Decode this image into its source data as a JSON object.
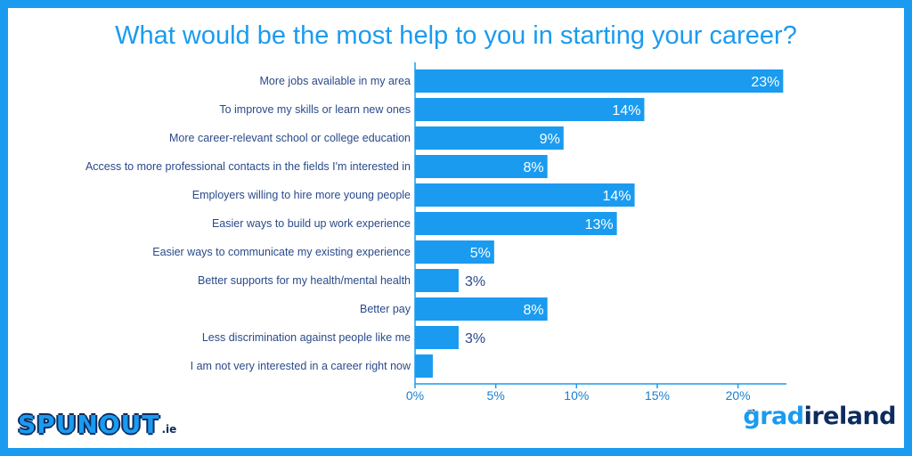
{
  "title": "What would be the most help to you in starting your career?",
  "chart_data": {
    "type": "bar",
    "orientation": "horizontal",
    "categories": [
      "More jobs available in my area",
      "To improve my skills or learn new ones",
      "More career-relevant school or college education",
      "Access to more professional contacts in the fields I'm interested in",
      "Employers willing to hire more young people",
      "Easier ways to build up work experience",
      "Easier ways to communicate my existing experience",
      "Better supports for my health/mental health",
      "Better pay",
      "Less discrimination against people like me",
      "I am not very interested in a career right now"
    ],
    "values": [
      22.8,
      14.2,
      9.2,
      8.2,
      13.6,
      12.5,
      4.9,
      2.7,
      8.2,
      2.7,
      1.1
    ],
    "data_labels": [
      "23%",
      "14%",
      "9%",
      "8%",
      "14%",
      "13%",
      "5%",
      "3%",
      "8%",
      "3%",
      ""
    ],
    "xlim": [
      0,
      23
    ],
    "xticks": [
      0,
      5,
      10,
      15,
      20
    ],
    "xtick_labels": [
      "0%",
      "5%",
      "10%",
      "15%",
      "20%"
    ],
    "xlabel": "",
    "ylabel": "",
    "bar_color": "#1a9bf0",
    "label_color": "#2a4a8a",
    "grid": false
  },
  "logos": {
    "left": {
      "text": "SPUNOUT",
      "suffix": ".ie"
    },
    "right": {
      "part1": "grad",
      "part2": "ireland"
    }
  },
  "colors": {
    "accent": "#1a9bf0",
    "navy": "#0d2b5e"
  }
}
